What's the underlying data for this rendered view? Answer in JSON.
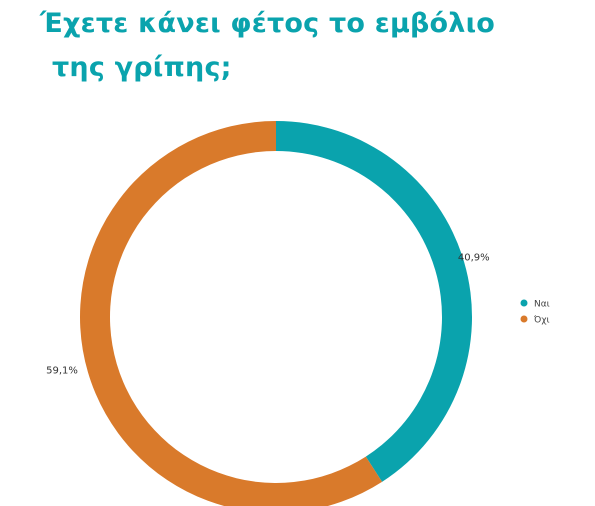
{
  "header": {
    "title_line1": "Έχετε κάνει φέτος το εμβόλιο",
    "title_line2": "της γρίπης;"
  },
  "chart_data": {
    "type": "pie",
    "donut": true,
    "categories": [
      "Ναι",
      "Όχι"
    ],
    "values": [
      40.9,
      59.1
    ],
    "labels": [
      "40,9%",
      "59,1%"
    ],
    "colors": [
      "#0aa3ad",
      "#d97a2b"
    ],
    "legend_position": "right"
  },
  "colors": {
    "title": "#0aa3ad"
  }
}
